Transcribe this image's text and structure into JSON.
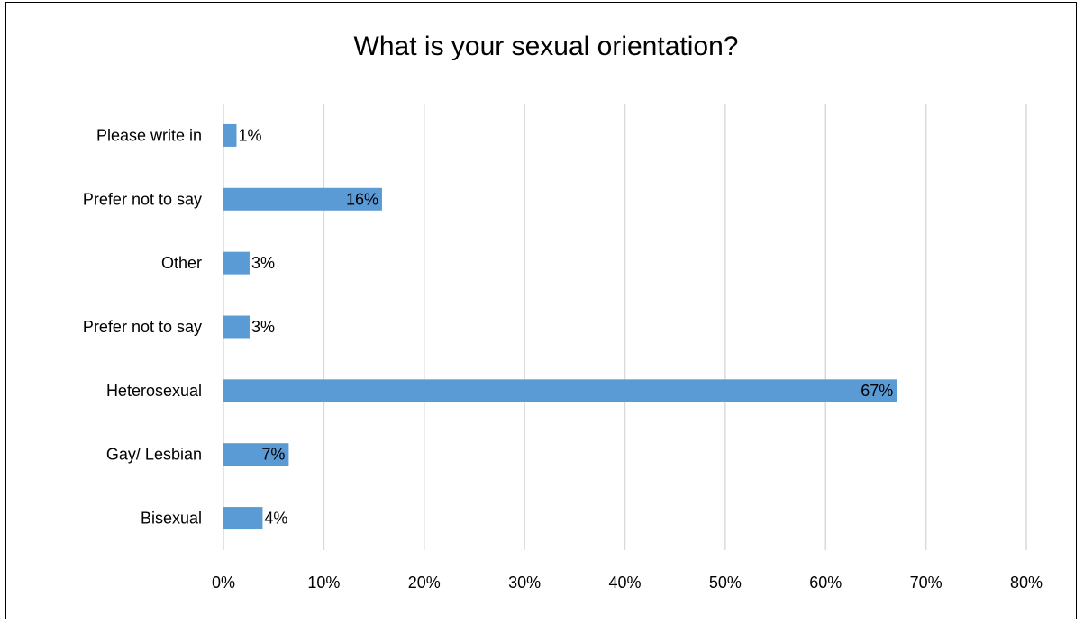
{
  "chart_data": {
    "type": "bar",
    "orientation": "horizontal",
    "title": "What is your sexual orientation?",
    "xlabel": "",
    "ylabel": "",
    "categories": [
      "Please write in",
      "Prefer not to say",
      "Other",
      "Prefer not to say",
      "Heterosexual",
      "Gay/ Lesbian",
      "Bisexual"
    ],
    "values": [
      1.3,
      15.8,
      2.6,
      2.6,
      67.1,
      6.5,
      3.9
    ],
    "data_labels": [
      "1%",
      "16%",
      "3%",
      "3%",
      "67%",
      "7%",
      "4%"
    ],
    "xlim": [
      0,
      80
    ],
    "x_ticks": [
      0,
      10,
      20,
      30,
      40,
      50,
      60,
      70,
      80
    ],
    "x_tick_labels": [
      "0%",
      "10%",
      "20%",
      "30%",
      "40%",
      "50%",
      "60%",
      "70%",
      "80%"
    ],
    "grid": "vertical",
    "legend": "none",
    "bar_color": "#5B9BD5",
    "grid_color": "#D9D9D9"
  }
}
